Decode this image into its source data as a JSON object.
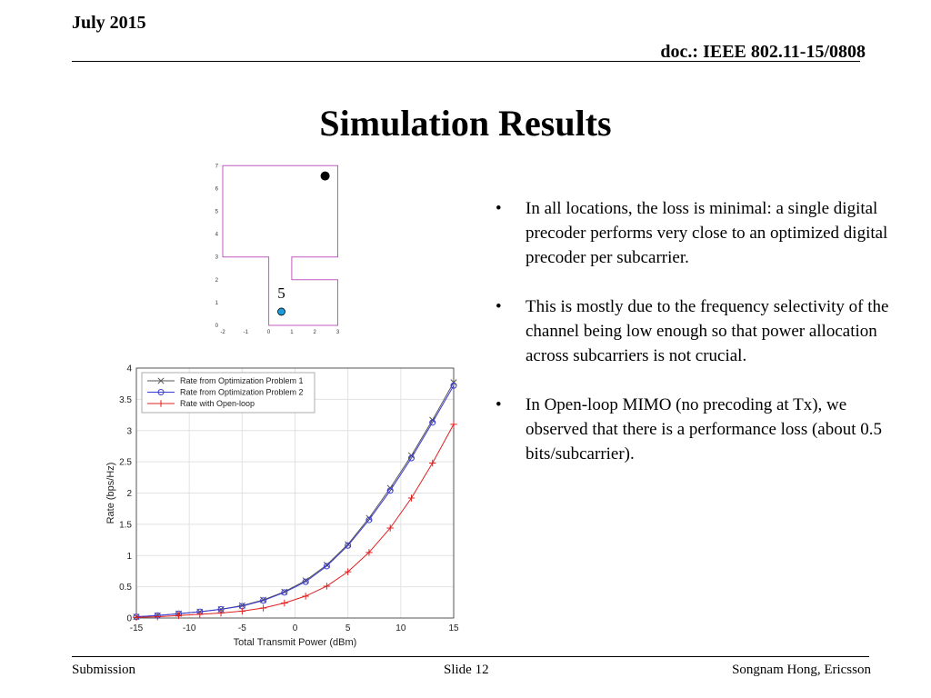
{
  "header": {
    "date": "July 2015",
    "doc": "doc.: IEEE 802.11-15/0808"
  },
  "slide": {
    "title": "Simulation Results",
    "bullets": [
      "In all locations, the loss is minimal: a single digital precoder performs very close to an optimized digital precoder per subcarrier.",
      "This is mostly due to the frequency selectivity of the channel being low enough so that power allocation across subcarriers is not crucial.",
      "In Open-loop MIMO (no precoding at Tx), we observed that there is a performance loss (about 0.5 bits/subcarrier)."
    ]
  },
  "footer": {
    "left": "Submission",
    "center": "Slide 12",
    "right": "Songnam Hong, Ericsson"
  },
  "floorplan": {
    "x_ticks": [
      "-2",
      "-1",
      "0",
      "1",
      "2",
      "3"
    ],
    "y_ticks": [
      "0",
      "1",
      "2",
      "3",
      "4",
      "5",
      "6",
      "7"
    ],
    "location_label": "5",
    "colors": {
      "outline": "#c05bc0",
      "tx": "#000000",
      "rx": "#1e9ad8"
    }
  },
  "chart_data": {
    "type": "line",
    "x": [
      -15,
      -13,
      -11,
      -9,
      -7,
      -5,
      -3,
      -1,
      1,
      3,
      5,
      7,
      9,
      11,
      13,
      15
    ],
    "xlabel": "Total Transmit Power (dBm)",
    "ylabel": "Rate (bps/Hz)",
    "xlim": [
      -15,
      15
    ],
    "ylim": [
      0,
      4
    ],
    "x_ticks": [
      "-15",
      "-10",
      "-5",
      "0",
      "5",
      "10",
      "15"
    ],
    "y_ticks": [
      "0",
      "0.5",
      "1",
      "1.5",
      "2",
      "2.5",
      "3",
      "3.5",
      "4"
    ],
    "grid": true,
    "legend_position": "top-left",
    "series": [
      {
        "name": "Rate from Optimization Problem 1",
        "color": "#555555",
        "marker": "x",
        "values": [
          0.02,
          0.04,
          0.07,
          0.1,
          0.14,
          0.2,
          0.29,
          0.42,
          0.6,
          0.85,
          1.18,
          1.6,
          2.08,
          2.6,
          3.17,
          3.77
        ]
      },
      {
        "name": "Rate from Optimization Problem 2",
        "color": "#3b3bd6",
        "marker": "o",
        "values": [
          0.02,
          0.04,
          0.07,
          0.1,
          0.14,
          0.19,
          0.28,
          0.41,
          0.58,
          0.83,
          1.16,
          1.57,
          2.04,
          2.56,
          3.13,
          3.72
        ]
      },
      {
        "name": "Rate with Open-loop",
        "color": "#e02020",
        "marker": "+",
        "values": [
          0.01,
          0.02,
          0.04,
          0.06,
          0.08,
          0.11,
          0.16,
          0.24,
          0.35,
          0.51,
          0.74,
          1.05,
          1.44,
          1.92,
          2.48,
          3.1
        ]
      }
    ]
  }
}
